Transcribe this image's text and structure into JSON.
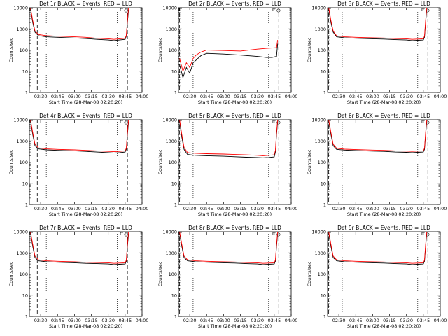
{
  "axes": {
    "xlabel": "Start Time (28-Mar-08 02:20:20)",
    "ylabel": "Counts/sec",
    "yscale": "log",
    "ylim": [
      1,
      10000
    ],
    "xlim": [
      "02:20",
      "04:00"
    ],
    "x_ticks": [
      "02:30",
      "02:45",
      "03:00",
      "03:15",
      "03:30",
      "03:45",
      "04:00"
    ],
    "y_ticks": [
      "1",
      "10",
      "100",
      "1000",
      "10000"
    ]
  },
  "colors": {
    "events": "#000000",
    "lld": "#ff0000"
  },
  "chart_data": [
    {
      "type": "line",
      "title": "Det 1r BLACK = Events, RED = LLD",
      "markers": {
        "dashed": [
          "02:27",
          "03:47"
        ],
        "dotted": [
          "02:35",
          "03:38"
        ],
        "S": "03:47"
      },
      "series": [
        {
          "color": "events",
          "x": [
            "02:21",
            "02:23",
            "02:25",
            "02:28",
            "02:35",
            "02:45",
            "03:00",
            "03:10",
            "03:20",
            "03:30",
            "03:35",
            "03:40",
            "03:45",
            "03:46",
            "03:47",
            "03:48"
          ],
          "values": [
            9000,
            2000,
            700,
            480,
            420,
            400,
            370,
            350,
            320,
            300,
            280,
            300,
            320,
            450,
            2000,
            8000
          ]
        },
        {
          "color": "lld",
          "x": [
            "02:21",
            "02:23",
            "02:25",
            "02:28",
            "02:35",
            "02:45",
            "03:00",
            "03:10",
            "03:20",
            "03:30",
            "03:35",
            "03:40",
            "03:45",
            "03:46",
            "03:47",
            "03:48"
          ],
          "values": [
            10000,
            2500,
            800,
            540,
            480,
            450,
            420,
            400,
            360,
            340,
            320,
            340,
            360,
            500,
            2500,
            10000
          ]
        }
      ]
    },
    {
      "type": "line",
      "title": "Det 2r BLACK = Events, RED = LLD",
      "markers": {
        "dashed": [
          "02:21",
          "03:49"
        ],
        "dotted": [
          "02:33",
          "03:40"
        ],
        "S": "03:50"
      },
      "series": [
        {
          "color": "events",
          "x": [
            "02:21",
            "02:24",
            "02:27",
            "02:30",
            "02:33",
            "02:36",
            "02:40",
            "02:45",
            "03:00",
            "03:15",
            "03:30",
            "03:38",
            "03:43",
            "03:47",
            "03:48"
          ],
          "values": [
            20,
            5,
            15,
            8,
            25,
            35,
            55,
            70,
            65,
            58,
            50,
            45,
            45,
            50,
            200
          ]
        },
        {
          "color": "lld",
          "x": [
            "02:21",
            "02:24",
            "02:27",
            "02:30",
            "02:33",
            "02:36",
            "02:40",
            "02:45",
            "03:00",
            "03:15",
            "03:30",
            "03:38",
            "03:43",
            "03:47",
            "03:48"
          ],
          "values": [
            40,
            10,
            25,
            15,
            40,
            60,
            80,
            100,
            95,
            90,
            110,
            120,
            125,
            130,
            300
          ]
        }
      ]
    },
    {
      "type": "line",
      "title": "Det 3r BLACK = Events, RED = LLD",
      "markers": {
        "dashed": [
          "02:21",
          "03:49"
        ],
        "dotted": [
          "02:33",
          "03:40"
        ],
        "S": "03:50"
      },
      "series": [
        {
          "color": "events",
          "x": [
            "02:21",
            "02:23",
            "02:25",
            "02:28",
            "02:35",
            "02:45",
            "03:00",
            "03:10",
            "03:20",
            "03:30",
            "03:35",
            "03:40",
            "03:45",
            "03:46",
            "03:47",
            "03:48"
          ],
          "values": [
            9000,
            2000,
            700,
            420,
            380,
            360,
            340,
            330,
            310,
            300,
            280,
            290,
            300,
            400,
            2000,
            8000
          ]
        },
        {
          "color": "lld",
          "x": [
            "02:21",
            "02:23",
            "02:25",
            "02:28",
            "02:35",
            "02:45",
            "03:00",
            "03:10",
            "03:20",
            "03:30",
            "03:35",
            "03:40",
            "03:45",
            "03:46",
            "03:47",
            "03:48"
          ],
          "values": [
            10000,
            2500,
            800,
            470,
            420,
            400,
            380,
            370,
            350,
            340,
            320,
            330,
            340,
            460,
            2500,
            10000
          ]
        }
      ]
    },
    {
      "type": "line",
      "title": "Det 4r BLACK = Events, RED = LLD",
      "markers": {
        "dashed": [
          "02:27",
          "03:47"
        ],
        "dotted": [
          "02:35",
          "03:38"
        ],
        "S": "03:47"
      },
      "series": [
        {
          "color": "events",
          "x": [
            "02:21",
            "02:23",
            "02:25",
            "02:28",
            "02:35",
            "02:45",
            "03:00",
            "03:10",
            "03:20",
            "03:30",
            "03:35",
            "03:40",
            "03:45",
            "03:46",
            "03:47",
            "03:48"
          ],
          "values": [
            9000,
            2000,
            600,
            420,
            380,
            360,
            340,
            320,
            300,
            280,
            270,
            280,
            300,
            400,
            2000,
            8000
          ]
        },
        {
          "color": "lld",
          "x": [
            "02:21",
            "02:23",
            "02:25",
            "02:28",
            "02:35",
            "02:45",
            "03:00",
            "03:10",
            "03:20",
            "03:30",
            "03:35",
            "03:40",
            "03:45",
            "03:46",
            "03:47",
            "03:48"
          ],
          "values": [
            10000,
            2500,
            700,
            470,
            420,
            400,
            380,
            360,
            340,
            320,
            310,
            320,
            340,
            460,
            2500,
            10000
          ]
        }
      ]
    },
    {
      "type": "line",
      "title": "Det 5r BLACK = Events, RED = LLD",
      "markers": {
        "dashed": [
          "02:21",
          "03:49"
        ],
        "dotted": [
          "02:33",
          "03:40"
        ],
        "S": "03:50"
      },
      "series": [
        {
          "color": "events",
          "x": [
            "02:21",
            "02:23",
            "02:25",
            "02:28",
            "02:35",
            "02:45",
            "03:00",
            "03:10",
            "03:20",
            "03:30",
            "03:35",
            "03:40",
            "03:45",
            "03:46",
            "03:47",
            "03:48"
          ],
          "values": [
            9000,
            1500,
            400,
            230,
            210,
            200,
            190,
            180,
            170,
            165,
            160,
            165,
            175,
            300,
            2000,
            8000
          ]
        },
        {
          "color": "lld",
          "x": [
            "02:21",
            "02:23",
            "02:25",
            "02:28",
            "02:35",
            "02:45",
            "03:00",
            "03:10",
            "03:20",
            "03:30",
            "03:35",
            "03:40",
            "03:45",
            "03:46",
            "03:47",
            "03:48"
          ],
          "values": [
            10000,
            2000,
            500,
            280,
            260,
            250,
            240,
            230,
            220,
            210,
            200,
            210,
            220,
            360,
            2500,
            10000
          ]
        }
      ]
    },
    {
      "type": "line",
      "title": "Det 6r BLACK = Events, RED = LLD",
      "markers": {
        "dashed": [
          "02:21",
          "03:49"
        ],
        "dotted": [
          "02:33",
          "03:40"
        ],
        "S": "03:50"
      },
      "series": [
        {
          "color": "events",
          "x": [
            "02:21",
            "02:23",
            "02:25",
            "02:28",
            "02:35",
            "02:45",
            "03:00",
            "03:10",
            "03:20",
            "03:30",
            "03:35",
            "03:40",
            "03:45",
            "03:46",
            "03:47",
            "03:48"
          ],
          "values": [
            9000,
            2000,
            600,
            400,
            370,
            350,
            330,
            320,
            300,
            290,
            280,
            290,
            300,
            400,
            2000,
            8000
          ]
        },
        {
          "color": "lld",
          "x": [
            "02:21",
            "02:23",
            "02:25",
            "02:28",
            "02:35",
            "02:45",
            "03:00",
            "03:10",
            "03:20",
            "03:30",
            "03:35",
            "03:40",
            "03:45",
            "03:46",
            "03:47",
            "03:48"
          ],
          "values": [
            10000,
            2500,
            700,
            450,
            410,
            390,
            370,
            360,
            340,
            330,
            320,
            330,
            340,
            460,
            2500,
            10000
          ]
        }
      ]
    },
    {
      "type": "line",
      "title": "Det 7r BLACK = Events, RED = LLD",
      "markers": {
        "dashed": [
          "02:27",
          "03:47"
        ],
        "dotted": [
          "02:35",
          "03:38"
        ],
        "S": "03:47"
      },
      "series": [
        {
          "color": "events",
          "x": [
            "02:21",
            "02:23",
            "02:25",
            "02:28",
            "02:35",
            "02:45",
            "03:00",
            "03:10",
            "03:20",
            "03:30",
            "03:35",
            "03:40",
            "03:45",
            "03:46",
            "03:47",
            "03:48"
          ],
          "values": [
            9000,
            2000,
            600,
            420,
            380,
            360,
            340,
            320,
            310,
            300,
            280,
            290,
            300,
            400,
            2000,
            8000
          ]
        },
        {
          "color": "lld",
          "x": [
            "02:21",
            "02:23",
            "02:25",
            "02:28",
            "02:35",
            "02:45",
            "03:00",
            "03:10",
            "03:20",
            "03:30",
            "03:35",
            "03:40",
            "03:45",
            "03:46",
            "03:47",
            "03:48"
          ],
          "values": [
            10000,
            2500,
            700,
            470,
            420,
            400,
            380,
            360,
            350,
            340,
            320,
            330,
            340,
            460,
            2500,
            10000
          ]
        }
      ]
    },
    {
      "type": "line",
      "title": "Det 8r BLACK = Events, RED = LLD",
      "markers": {
        "dashed": [
          "02:21",
          "03:49"
        ],
        "dotted": [
          "02:33",
          "03:40"
        ],
        "S": "03:50"
      },
      "series": [
        {
          "color": "events",
          "x": [
            "02:21",
            "02:23",
            "02:25",
            "02:28",
            "02:35",
            "02:45",
            "03:00",
            "03:10",
            "03:20",
            "03:30",
            "03:35",
            "03:40",
            "03:45",
            "03:46",
            "03:47",
            "03:48"
          ],
          "values": [
            9000,
            2000,
            600,
            420,
            380,
            360,
            340,
            330,
            310,
            300,
            280,
            290,
            300,
            400,
            2000,
            8000
          ]
        },
        {
          "color": "lld",
          "x": [
            "02:21",
            "02:23",
            "02:25",
            "02:28",
            "02:35",
            "02:45",
            "03:00",
            "03:10",
            "03:20",
            "03:30",
            "03:35",
            "03:40",
            "03:45",
            "03:46",
            "03:47",
            "03:48"
          ],
          "values": [
            10000,
            2500,
            700,
            470,
            420,
            400,
            380,
            370,
            350,
            340,
            320,
            330,
            340,
            460,
            2500,
            10000
          ]
        }
      ]
    },
    {
      "type": "line",
      "title": "Det 9r BLACK = Events, RED = LLD",
      "markers": {
        "dashed": [
          "02:21",
          "03:49"
        ],
        "dotted": [
          "02:33",
          "03:40"
        ],
        "S": "03:50"
      },
      "series": [
        {
          "color": "events",
          "x": [
            "02:21",
            "02:23",
            "02:25",
            "02:28",
            "02:35",
            "02:45",
            "03:00",
            "03:10",
            "03:20",
            "03:30",
            "03:35",
            "03:40",
            "03:45",
            "03:46",
            "03:47",
            "03:48"
          ],
          "values": [
            9000,
            2000,
            600,
            420,
            380,
            360,
            340,
            330,
            310,
            300,
            280,
            290,
            300,
            400,
            2000,
            8000
          ]
        },
        {
          "color": "lld",
          "x": [
            "02:21",
            "02:23",
            "02:25",
            "02:28",
            "02:35",
            "02:45",
            "03:00",
            "03:10",
            "03:20",
            "03:30",
            "03:35",
            "03:40",
            "03:45",
            "03:46",
            "03:47",
            "03:48"
          ],
          "values": [
            10000,
            2500,
            700,
            470,
            420,
            400,
            380,
            370,
            350,
            340,
            320,
            330,
            340,
            460,
            2500,
            10000
          ]
        }
      ]
    }
  ]
}
